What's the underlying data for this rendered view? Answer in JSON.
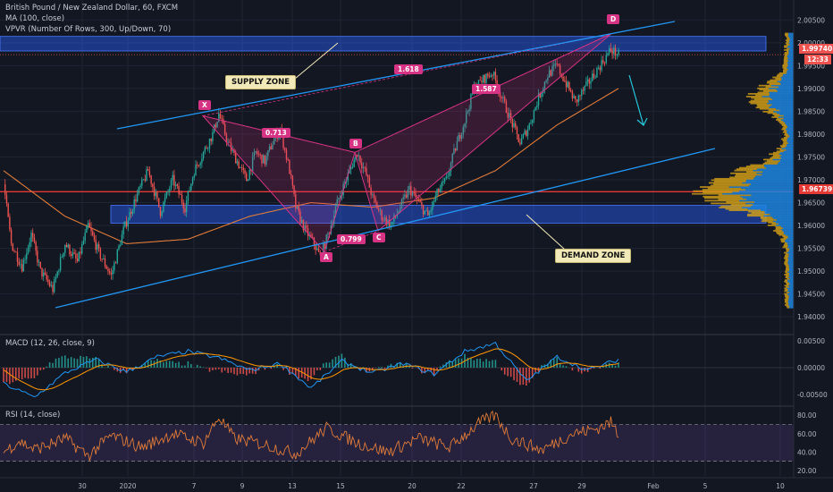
{
  "main": {
    "legend_line1": "British Pound / New Zealand Dollar, 60, FXCM",
    "legend_line2": "MA (100, close)",
    "legend_line3": "VPVR (Number Of Rows, 300, Up/Down, 70)",
    "supply_label": "SUPPLY ZONE",
    "demand_label": "DEMAND ZONE",
    "price_tag_current": "1.99740",
    "price_tag_timer": "12:33",
    "price_tag_line": "1.96739",
    "pattern_points": {
      "X": "X",
      "A": "A",
      "B": "B",
      "C": "C",
      "D": "D"
    },
    "ratios": {
      "xab": "0.713",
      "abc": "0.799",
      "bcd": "1.618",
      "xad": "1.587"
    }
  },
  "macd": {
    "legend": "MACD (12, 26, close, 9)"
  },
  "rsi": {
    "legend": "RSI (14, close)"
  },
  "colors": {
    "background": "#131722",
    "up": "#26a69a",
    "down": "#ef5350",
    "zone": "#2962ff",
    "pattern": "#d63384",
    "trendline": "#2196f3",
    "ma": "#e07b39",
    "vpvr_up": "#1e88e5",
    "vpvr_down": "#d4a017",
    "rsi_line": "#e07b39",
    "macd_line": "#2196f3",
    "signal_line": "#ff9800"
  },
  "chart_data": [
    {
      "type": "candlestick",
      "title": "British Pound / New Zealand Dollar, 60, FXCM",
      "x_ticks": [
        "30",
        "2020",
        "7",
        "9",
        "13",
        "15",
        "20",
        "22",
        "27",
        "29",
        "Feb",
        "5",
        "10"
      ],
      "y_ticks": [
        "2.00500",
        "2.00000",
        "1.99500",
        "1.99000",
        "1.98500",
        "1.98000",
        "1.97500",
        "1.97000",
        "1.96500",
        "1.96000",
        "1.95500",
        "1.95000",
        "1.94500",
        "1.94000"
      ],
      "ylim": [
        1.9365,
        2.0078
      ],
      "close_path": [
        [
          0,
          1.969
        ],
        [
          5,
          1.956
        ],
        [
          12,
          1.951
        ],
        [
          18,
          1.958
        ],
        [
          24,
          1.95
        ],
        [
          32,
          1.946
        ],
        [
          40,
          1.956
        ],
        [
          48,
          1.952
        ],
        [
          55,
          1.96
        ],
        [
          62,
          1.954
        ],
        [
          70,
          1.949
        ],
        [
          78,
          1.959
        ],
        [
          86,
          1.966
        ],
        [
          94,
          1.972
        ],
        [
          102,
          1.963
        ],
        [
          110,
          1.97
        ],
        [
          118,
          1.964
        ],
        [
          124,
          1.972
        ],
        [
          130,
          1.976
        ],
        [
          136,
          1.98
        ],
        [
          140,
          1.9845
        ],
        [
          146,
          1.978
        ],
        [
          152,
          1.974
        ],
        [
          158,
          1.97
        ],
        [
          164,
          1.976
        ],
        [
          170,
          1.974
        ],
        [
          176,
          1.979
        ],
        [
          180,
          1.981
        ],
        [
          186,
          1.972
        ],
        [
          190,
          1.964
        ],
        [
          196,
          1.959
        ],
        [
          202,
          1.956
        ],
        [
          206,
          1.953
        ],
        [
          212,
          1.959
        ],
        [
          218,
          1.966
        ],
        [
          224,
          1.971
        ],
        [
          230,
          1.976
        ],
        [
          236,
          1.971
        ],
        [
          240,
          1.966
        ],
        [
          246,
          1.962
        ],
        [
          252,
          1.96
        ],
        [
          258,
          1.964
        ],
        [
          264,
          1.968
        ],
        [
          270,
          1.965
        ],
        [
          276,
          1.962
        ],
        [
          282,
          1.967
        ],
        [
          288,
          1.97
        ],
        [
          294,
          1.977
        ],
        [
          300,
          1.983
        ],
        [
          306,
          1.99
        ],
        [
          312,
          1.992
        ],
        [
          318,
          1.9935
        ],
        [
          324,
          1.988
        ],
        [
          330,
          1.983
        ],
        [
          336,
          1.978
        ],
        [
          342,
          1.982
        ],
        [
          348,
          1.988
        ],
        [
          354,
          1.993
        ],
        [
          360,
          1.995
        ],
        [
          366,
          1.991
        ],
        [
          372,
          1.987
        ],
        [
          378,
          1.99
        ],
        [
          384,
          1.993
        ],
        [
          390,
          1.996
        ],
        [
          395,
          1.9985
        ],
        [
          400,
          1.9974
        ]
      ],
      "ma_100": [
        [
          0,
          1.972
        ],
        [
          40,
          1.962
        ],
        [
          80,
          1.956
        ],
        [
          120,
          1.957
        ],
        [
          160,
          1.962
        ],
        [
          200,
          1.965
        ],
        [
          240,
          1.964
        ],
        [
          280,
          1.966
        ],
        [
          320,
          1.972
        ],
        [
          360,
          1.982
        ],
        [
          400,
          1.99
        ]
      ],
      "supply_zone": [
        1.9982,
        2.0014
      ],
      "demand_zone": [
        1.9605,
        1.9644
      ],
      "horizontal_line": 1.96739,
      "current_price": 1.9974,
      "harmonic_pattern": {
        "X": 1.984,
        "A": 1.9542,
        "B": 1.976,
        "C": 1.9588,
        "D": 2.002,
        "ratios": {
          "XAB": 0.713,
          "ABC": 0.799,
          "BCD": 1.618,
          "XAD": 1.587
        }
      }
    },
    {
      "type": "line",
      "title": "MACD (12, 26, close, 9)",
      "y_ticks": [
        "0.00500",
        "0.00000",
        "-0.00500"
      ],
      "ylim": [
        -0.0068,
        0.0058
      ],
      "macd": [
        [
          0,
          -0.003
        ],
        [
          20,
          -0.0055
        ],
        [
          40,
          -0.001
        ],
        [
          60,
          0.0015
        ],
        [
          80,
          -0.0008
        ],
        [
          100,
          0.002
        ],
        [
          120,
          0.003
        ],
        [
          140,
          0.0018
        ],
        [
          160,
          -0.0005
        ],
        [
          180,
          0.0008
        ],
        [
          200,
          -0.0038
        ],
        [
          220,
          0.0012
        ],
        [
          240,
          -0.001
        ],
        [
          260,
          0.0008
        ],
        [
          280,
          -0.0012
        ],
        [
          300,
          0.003
        ],
        [
          320,
          0.0045
        ],
        [
          340,
          -0.0025
        ],
        [
          360,
          0.002
        ],
        [
          380,
          -0.0005
        ],
        [
          400,
          0.0015
        ]
      ]
    },
    {
      "type": "line",
      "title": "RSI (14, close)",
      "y_ticks": [
        "80.00",
        "60.00",
        "40.00",
        "20.00"
      ],
      "ylim": [
        14,
        88
      ],
      "bands": [
        30,
        70
      ],
      "rsi": [
        [
          0,
          40
        ],
        [
          10,
          52
        ],
        [
          20,
          43
        ],
        [
          30,
          48
        ],
        [
          40,
          55
        ],
        [
          55,
          36
        ],
        [
          70,
          58
        ],
        [
          90,
          45
        ],
        [
          110,
          60
        ],
        [
          130,
          50
        ],
        [
          140,
          78
        ],
        [
          150,
          55
        ],
        [
          170,
          48
        ],
        [
          190,
          38
        ],
        [
          210,
          66
        ],
        [
          230,
          50
        ],
        [
          250,
          40
        ],
        [
          270,
          55
        ],
        [
          290,
          45
        ],
        [
          310,
          72
        ],
        [
          320,
          80
        ],
        [
          330,
          55
        ],
        [
          350,
          42
        ],
        [
          370,
          60
        ],
        [
          385,
          65
        ],
        [
          395,
          72
        ],
        [
          400,
          60
        ]
      ]
    }
  ]
}
